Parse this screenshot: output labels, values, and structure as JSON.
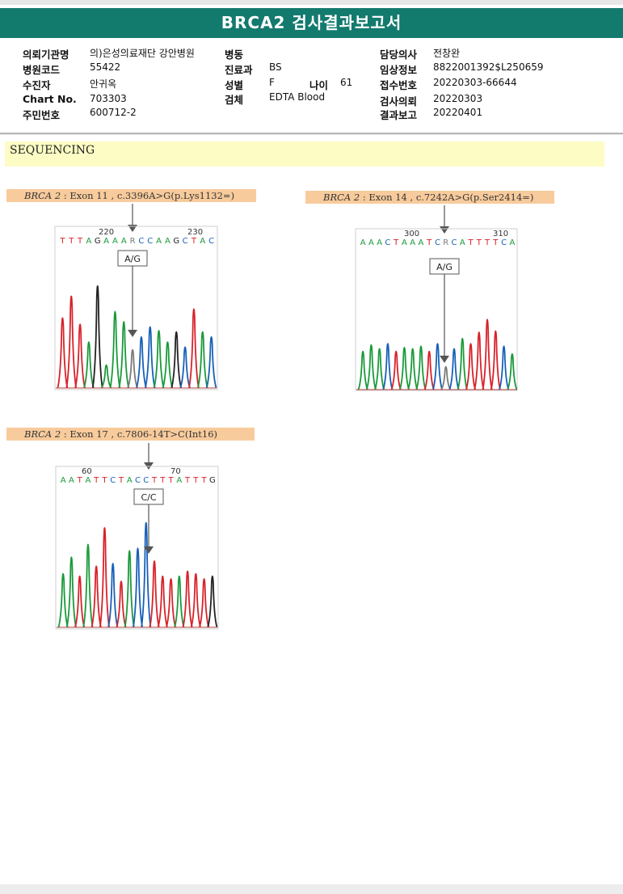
{
  "report": {
    "title": "BRCA2 검사결과보고서"
  },
  "patient": {
    "col1": [
      {
        "label": "의뢰기관명",
        "value": "의)은성의료재단 강안병원"
      },
      {
        "label": "병원코드",
        "value": "55422"
      },
      {
        "label": "수진자",
        "value": "안귀옥"
      },
      {
        "label": "Chart No.",
        "value": "703303"
      },
      {
        "label": "주민번호",
        "value": "600712-2"
      }
    ],
    "col2": [
      {
        "label": "병동",
        "value": ""
      },
      {
        "label": "진료과",
        "value": "BS"
      },
      {
        "label": "성별",
        "value": "F"
      },
      {
        "label": "검체",
        "value": "EDTA Blood"
      }
    ],
    "age": {
      "label": "나이",
      "value": "61"
    },
    "col3": [
      {
        "label": "담당의사",
        "value": "전창완"
      },
      {
        "label": "임상정보",
        "value": "8822001392$L250659"
      },
      {
        "label": "접수번호",
        "value": "20220303-66644"
      },
      {
        "label": "검사의뢰",
        "value": "20220303"
      },
      {
        "label": "결과보고",
        "value": "20220401"
      }
    ]
  },
  "section": {
    "title": "SEQUENCING"
  },
  "variants": [
    {
      "gene": "BRCA 2",
      "detail": ": Exon 11 , c.3396A>G(p.Lys1132=)",
      "pos_left": "220",
      "pos_right": "230",
      "sequence": "TTTAGAAARCCAAGCTAC",
      "call": "A/G"
    },
    {
      "gene": "BRCA 2",
      "detail": ": Exon 14 , c.7242A>G(p.Ser2414=)",
      "pos_left": "300",
      "pos_right": "310",
      "sequence": "AAACTAAATCRCATTTTCA",
      "call": "A/G"
    },
    {
      "gene": "BRCA 2",
      "detail": ": Exon 17 , c.7806-14T>C(Int16)",
      "pos_left": "60",
      "pos_right": "70",
      "sequence": "AATATTCTACCTTTATTTG",
      "call": "C/C"
    }
  ],
  "colors": {
    "A": "#1a9a3a",
    "C": "#1760b8",
    "G": "#222222",
    "T": "#d8222a",
    "R": "#7a7a7a",
    "title_bar": "#137a6e",
    "variant_label": "#f8cb9c",
    "section_bar": "#fcfcc4"
  }
}
